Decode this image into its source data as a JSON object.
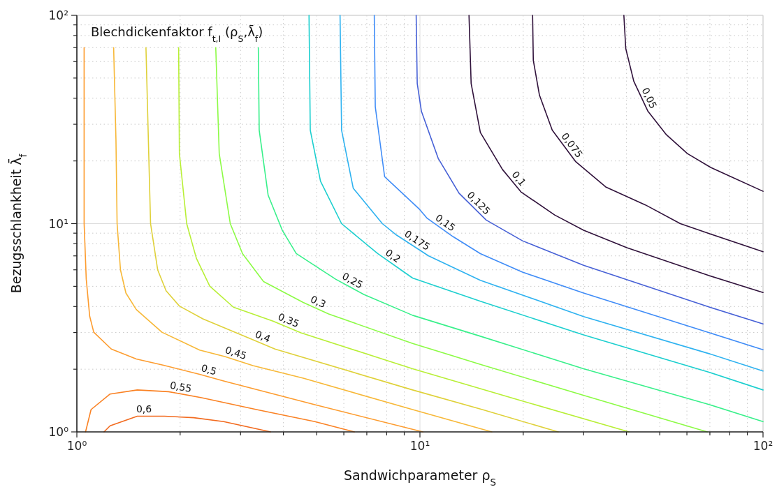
{
  "chart_data": {
    "type": "line",
    "title": "Blechdickenfaktor f$_{t,I}$ (ρ$_{S}$,λ̄$_{f}$)",
    "xlabel": "Sandwichparameter ρ$_{S}$",
    "ylabel": "Bezugsschlankheit λ̄$_{f}$",
    "log": "xy",
    "xlim": [
      1,
      100
    ],
    "ylim": [
      1,
      100
    ],
    "xticks": [
      {
        "value": 1,
        "label": "10⁰"
      },
      {
        "value": 2,
        "label": null
      },
      {
        "value": 3,
        "label": null
      },
      {
        "value": 4,
        "label": null
      },
      {
        "value": 5,
        "label": null
      },
      {
        "value": 6,
        "label": null
      },
      {
        "value": 7,
        "label": null
      },
      {
        "value": 8,
        "label": null
      },
      {
        "value": 9,
        "label": null
      },
      {
        "value": 10,
        "label": "10¹"
      },
      {
        "value": 20,
        "label": null
      },
      {
        "value": 30,
        "label": null
      },
      {
        "value": 40,
        "label": null
      },
      {
        "value": 50,
        "label": null
      },
      {
        "value": 60,
        "label": null
      },
      {
        "value": 70,
        "label": null
      },
      {
        "value": 80,
        "label": null
      },
      {
        "value": 90,
        "label": null
      },
      {
        "value": 100,
        "label": "10²"
      }
    ],
    "yticks": [
      {
        "value": 1,
        "label": "10⁰"
      },
      {
        "value": 2,
        "label": null
      },
      {
        "value": 3,
        "label": null
      },
      {
        "value": 4,
        "label": null
      },
      {
        "value": 5,
        "label": null
      },
      {
        "value": 6,
        "label": null
      },
      {
        "value": 7,
        "label": null
      },
      {
        "value": 8,
        "label": null
      },
      {
        "value": 9,
        "label": null
      },
      {
        "value": 10,
        "label": "10¹"
      },
      {
        "value": 20,
        "label": null
      },
      {
        "value": 30,
        "label": null
      },
      {
        "value": 40,
        "label": null
      },
      {
        "value": 50,
        "label": null
      },
      {
        "value": 60,
        "label": null
      },
      {
        "value": 70,
        "label": null
      },
      {
        "value": 80,
        "label": null
      },
      {
        "value": 90,
        "label": null
      },
      {
        "value": 100,
        "label": "10²"
      }
    ],
    "grid": true,
    "series": [
      {
        "name": "0,6",
        "color": "#f26a1e",
        "x": [
          1.2,
          1.25,
          1.5,
          1.8,
          2.19,
          2.68,
          3.67
        ],
        "values": [
          1,
          1.07,
          1.19,
          1.19,
          1.17,
          1.12,
          1
        ]
      },
      {
        "name": "0,55",
        "color": "#fa8224",
        "x": [
          1.06,
          1.1,
          1.25,
          1.5,
          1.85,
          2.31,
          3.34,
          4.94,
          6.44
        ],
        "values": [
          1,
          1.28,
          1.52,
          1.59,
          1.56,
          1.46,
          1.28,
          1.12,
          1
        ]
      },
      {
        "name": "0,5",
        "color": "#fd9c2f",
        "x": [
          1.05,
          1.05,
          1.05,
          1.065,
          1.09,
          1.12,
          1.26,
          1.49,
          1.79,
          2.28,
          2.7,
          4.94,
          10.2
        ],
        "values": [
          70,
          25.4,
          10,
          5.41,
          3.59,
          3.01,
          2.5,
          2.24,
          2.09,
          1.89,
          1.75,
          1.35,
          1
        ]
      },
      {
        "name": "0,45",
        "color": "#f7b838",
        "x": [
          1.28,
          1.3,
          1.31,
          1.34,
          1.39,
          1.49,
          1.77,
          2.28,
          2.7,
          3.26,
          4.57,
          9.52,
          16.2
        ],
        "values": [
          70,
          25.4,
          10,
          6,
          4.64,
          3.87,
          3.01,
          2.47,
          2.3,
          2.08,
          1.81,
          1.28,
          1
        ]
      },
      {
        "name": "0,4",
        "color": "#dfd13a",
        "x": [
          1.59,
          1.64,
          1.72,
          1.82,
          1.99,
          2.33,
          3.19,
          3.78,
          9.52,
          15.2,
          25.3
        ],
        "values": [
          70,
          10,
          6,
          4.76,
          4.02,
          3.49,
          2.81,
          2.5,
          1.59,
          1.28,
          1
        ]
      },
      {
        "name": "0,35",
        "color": "#b8ef36",
        "x": [
          1.98,
          1.99,
          2.09,
          2.23,
          2.44,
          2.86,
          3.73,
          4.5,
          9.52,
          19.5,
          40.7
        ],
        "values": [
          70,
          21.7,
          10,
          6.82,
          5.01,
          3.97,
          3.4,
          2.99,
          2.01,
          1.42,
          1
        ]
      },
      {
        "name": "0,3",
        "color": "#8cfb45",
        "x": [
          2.54,
          2.6,
          2.8,
          3.04,
          3.5,
          4.57,
          5.42,
          9.52,
          15,
          30.3,
          68.8
        ],
        "values": [
          70,
          21.7,
          10,
          7.18,
          5.27,
          4.18,
          3.68,
          2.66,
          2.11,
          1.49,
          1
        ]
      },
      {
        "name": "0,25",
        "color": "#38f08a",
        "x": [
          3.38,
          3.4,
          3.61,
          3.97,
          4.36,
          5.68,
          6.86,
          9.52,
          15,
          30,
          69.9,
          100
        ],
        "values": [
          70,
          28.1,
          13.7,
          9.29,
          7.18,
          5.41,
          4.57,
          3.63,
          2.88,
          2.01,
          1.35,
          1.12
        ]
      },
      {
        "name": "0,2",
        "color": "#1ccfcf",
        "x": [
          4.75,
          4.79,
          5.13,
          5.91,
          7.53,
          8.8,
          9.52,
          15,
          30,
          69.9,
          100
        ],
        "values": [
          100,
          28.1,
          16,
          10,
          7.18,
          6,
          5.48,
          4.24,
          2.92,
          1.93,
          1.59
        ]
      },
      {
        "name": "0,175",
        "color": "#2eb2f0",
        "x": [
          5.85,
          5.91,
          6.39,
          7.77,
          8.54,
          10.6,
          15,
          30,
          69.9,
          100
        ],
        "values": [
          100,
          28.1,
          14.8,
          10,
          8.82,
          7,
          5.34,
          3.58,
          2.37,
          1.96
        ]
      },
      {
        "name": "0,15",
        "color": "#3f8cf7",
        "x": [
          7.36,
          7.41,
          7.89,
          9.98,
          10.5,
          12.5,
          15,
          19.9,
          30,
          69.9,
          100
        ],
        "values": [
          100,
          36.4,
          16.8,
          11.7,
          10.6,
          8.65,
          7.18,
          5.85,
          4.64,
          2.99,
          2.48
        ]
      },
      {
        "name": "0,125",
        "color": "#4660d6",
        "x": [
          9.75,
          9.82,
          10.1,
          11.3,
          13,
          15.6,
          19.9,
          30,
          69.9,
          100
        ],
        "values": [
          100,
          47.1,
          34.6,
          20.6,
          14,
          10.4,
          8.27,
          6.31,
          3.97,
          3.3
        ]
      },
      {
        "name": "0,1",
        "color": "#30123b",
        "x": [
          13.9,
          14.1,
          15,
          17.4,
          19.7,
          24.7,
          30,
          40.1,
          69.9,
          100
        ],
        "values": [
          100,
          47.1,
          27.4,
          18.2,
          14.2,
          11,
          9.29,
          7.66,
          5.62,
          4.67
        ]
      },
      {
        "name": "0,075",
        "color": "#30123b",
        "x": [
          21.3,
          21.4,
          22.3,
          24.3,
          28.4,
          34.8,
          45.4,
          57.4,
          69.9,
          100
        ],
        "values": [
          100,
          60.9,
          41.4,
          28.1,
          19.9,
          15,
          12.3,
          10,
          8.94,
          7.33
        ]
      },
      {
        "name": "0,05",
        "color": "#30123b",
        "x": [
          39.3,
          39.8,
          42,
          46.2,
          52.3,
          60.2,
          70.4,
          100
        ],
        "values": [
          100,
          69.3,
          48.3,
          34.6,
          26.7,
          21.7,
          18.6,
          14.3
        ]
      }
    ]
  }
}
